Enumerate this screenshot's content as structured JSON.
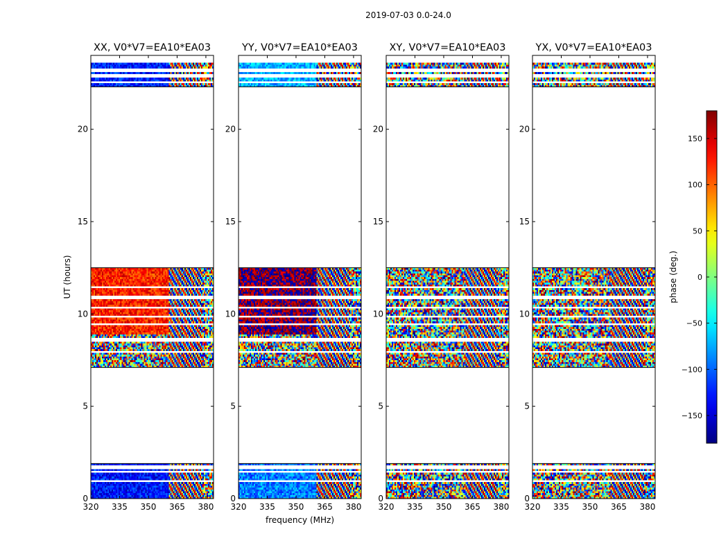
{
  "suptitle": "2019-07-03 0.0-24.0",
  "chart_data": [
    {
      "type": "heatmap",
      "title": "XX, V0*V7=EA10*EA03",
      "xlim": [
        320,
        384
      ],
      "ylim": [
        0,
        24
      ],
      "xticks": [
        320,
        335,
        350,
        365,
        380
      ],
      "yticks": [
        0,
        5,
        10,
        15,
        20
      ],
      "ylabel": "UT (hours)",
      "xlabel": "",
      "data_blocks_hours": [
        [
          0,
          1.9
        ],
        [
          7.1,
          12.5
        ],
        [
          22.3,
          23.6
        ]
      ],
      "coherent_band_MHz": [
        320,
        360.5
      ],
      "coherent_phase_deg": {
        "early": -130,
        "mid": 125,
        "late": -125
      }
    },
    {
      "type": "heatmap",
      "title": "YY, V0*V7=EA10*EA03",
      "xlim": [
        320,
        384
      ],
      "ylim": [
        0,
        24
      ],
      "xticks": [
        320,
        335,
        350,
        365,
        380
      ],
      "yticks": [
        0,
        5,
        10,
        15,
        20
      ],
      "ylabel": "",
      "xlabel": "frequency (MHz)",
      "data_blocks_hours": [
        [
          0,
          1.9
        ],
        [
          7.1,
          12.5
        ],
        [
          22.3,
          23.6
        ]
      ],
      "coherent_band_MHz": [
        320,
        360.5
      ],
      "coherent_phase_deg": {
        "early": -90,
        "mid": 175,
        "late": -70
      }
    },
    {
      "type": "heatmap",
      "title": "XY, V0*V7=EA10*EA03",
      "xlim": [
        320,
        384
      ],
      "ylim": [
        0,
        24
      ],
      "xticks": [
        320,
        335,
        350,
        365,
        380
      ],
      "yticks": [
        0,
        5,
        10,
        15,
        20
      ],
      "ylabel": "",
      "xlabel": "",
      "data_blocks_hours": [
        [
          0,
          1.9
        ],
        [
          7.1,
          12.5
        ],
        [
          22.3,
          23.6
        ]
      ],
      "coherent_band_MHz": null,
      "coherent_phase_deg": null
    },
    {
      "type": "heatmap",
      "title": "YX, V0*V7=EA10*EA03",
      "xlim": [
        320,
        384
      ],
      "ylim": [
        0,
        24
      ],
      "xticks": [
        320,
        335,
        350,
        365,
        380
      ],
      "yticks": [
        0,
        5,
        10,
        15,
        20
      ],
      "ylabel": "",
      "xlabel": "",
      "data_blocks_hours": [
        [
          0,
          1.9
        ],
        [
          7.1,
          12.5
        ],
        [
          22.3,
          23.6
        ]
      ],
      "coherent_band_MHz": null,
      "coherent_phase_deg": null
    }
  ],
  "colorbar": {
    "label": "phase (deg.)",
    "range": [
      -180,
      180
    ],
    "ticks": [
      -150,
      -100,
      -50,
      0,
      50,
      100,
      150
    ],
    "tick_labels": [
      "−150",
      "−100",
      "−50",
      "0",
      "50",
      "100",
      "150"
    ],
    "colormap": "jet"
  }
}
